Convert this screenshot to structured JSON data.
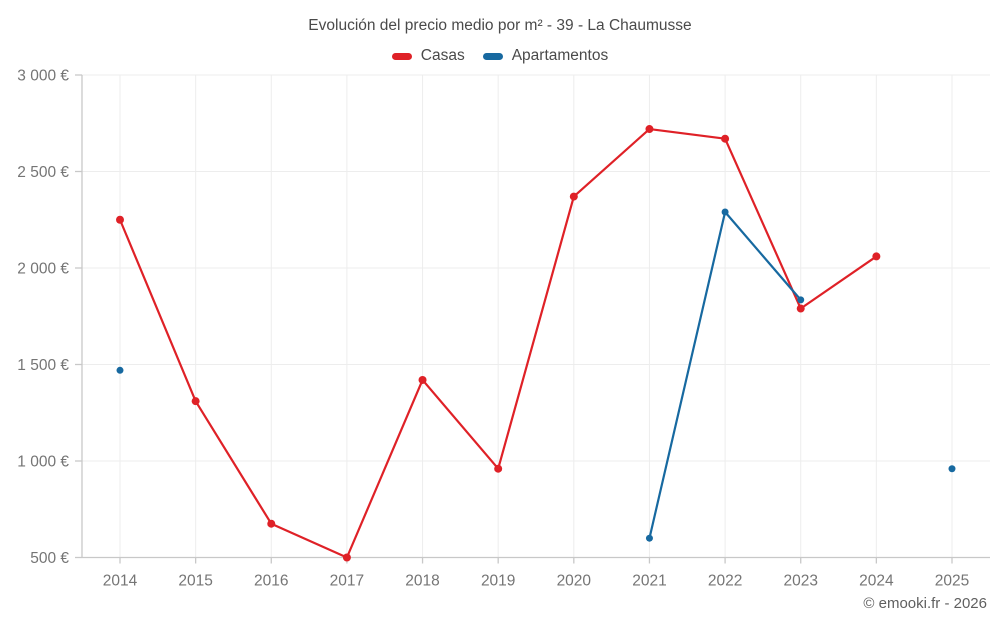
{
  "chart": {
    "title": "Evolución del precio medio por m² - 39 - La Chaumusse",
    "copyright": "© emooki.fr - 2026"
  },
  "chart_data": {
    "type": "line",
    "title": "Evolución del precio medio por m² - 39 - La Chaumusse",
    "xlabel": "",
    "ylabel": "",
    "categories": [
      "2014",
      "2015",
      "2016",
      "2017",
      "2018",
      "2019",
      "2020",
      "2021",
      "2022",
      "2023",
      "2024",
      "2025"
    ],
    "series": [
      {
        "name": "Casas",
        "color": "#df2127",
        "marker_radius": 4,
        "values": [
          2250,
          1310,
          675,
          500,
          1420,
          960,
          2370,
          2720,
          2670,
          1790,
          2060,
          null
        ]
      },
      {
        "name": "Apartamentos",
        "color": "#1769a0",
        "marker_radius": 3.5,
        "values": [
          1470,
          null,
          null,
          null,
          null,
          null,
          null,
          600,
          2290,
          1835,
          null,
          960
        ]
      }
    ],
    "ylim": [
      500,
      3000
    ],
    "y_ticks": [
      {
        "value": 500,
        "label": "500 €"
      },
      {
        "value": 1000,
        "label": "1 000 €"
      },
      {
        "value": 1500,
        "label": "1 500 €"
      },
      {
        "value": 2000,
        "label": "2 000 €"
      },
      {
        "value": 2500,
        "label": "2 500 €"
      },
      {
        "value": 3000,
        "label": "3 000 €"
      }
    ],
    "grid": true,
    "legend_position": "top",
    "colors": {
      "grid": "#ededed",
      "axis": "#c8c8c8",
      "label": "#757575"
    }
  }
}
